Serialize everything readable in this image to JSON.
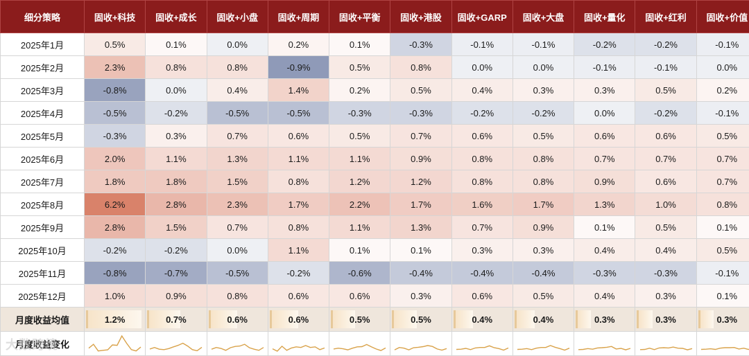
{
  "chart_data": {
    "type": "heatmap",
    "title": "",
    "row_header": "细分策略",
    "columns": [
      "固收+科技",
      "固收+成长",
      "固收+小盘",
      "固收+周期",
      "固收+平衡",
      "固收+港股",
      "固收+GARP",
      "固收+大盘",
      "固收+量化",
      "固收+红利",
      "固收+价值"
    ],
    "rows": [
      "2025年1月",
      "2025年2月",
      "2025年3月",
      "2025年4月",
      "2025年5月",
      "2025年6月",
      "2025年7月",
      "2025年8月",
      "2025年9月",
      "2025年10月",
      "2025年11月",
      "2025年12月"
    ],
    "values": [
      [
        0.5,
        0.1,
        0.0,
        0.2,
        0.1,
        -0.3,
        -0.1,
        -0.1,
        -0.2,
        -0.2,
        -0.1
      ],
      [
        2.3,
        0.8,
        0.8,
        -0.9,
        0.5,
        0.8,
        0.0,
        0.0,
        -0.1,
        -0.1,
        0.0
      ],
      [
        -0.8,
        0.0,
        0.4,
        1.4,
        0.2,
        0.5,
        0.4,
        0.3,
        0.3,
        0.5,
        0.2
      ],
      [
        -0.5,
        -0.2,
        -0.5,
        -0.5,
        -0.3,
        -0.3,
        -0.2,
        -0.2,
        0.0,
        -0.2,
        -0.1
      ],
      [
        -0.3,
        0.3,
        0.7,
        0.6,
        0.5,
        0.7,
        0.6,
        0.5,
        0.6,
        0.6,
        0.5
      ],
      [
        2.0,
        1.1,
        1.3,
        1.1,
        1.1,
        0.9,
        0.8,
        0.8,
        0.7,
        0.7,
        0.7
      ],
      [
        1.8,
        1.8,
        1.5,
        0.8,
        1.2,
        1.2,
        0.8,
        0.8,
        0.9,
        0.6,
        0.7
      ],
      [
        6.2,
        2.8,
        2.3,
        1.7,
        2.2,
        1.7,
        1.6,
        1.7,
        1.3,
        1.0,
        0.8
      ],
      [
        2.8,
        1.5,
        0.7,
        0.8,
        1.1,
        1.3,
        0.7,
        0.9,
        0.1,
        0.5,
        0.1
      ],
      [
        -0.2,
        -0.2,
        0.0,
        1.1,
        0.1,
        0.1,
        0.3,
        0.3,
        0.4,
        0.4,
        0.5
      ],
      [
        -0.8,
        -0.7,
        -0.5,
        -0.2,
        -0.6,
        -0.4,
        -0.4,
        -0.4,
        -0.3,
        -0.3,
        -0.1
      ],
      [
        1.0,
        0.9,
        0.8,
        0.6,
        0.6,
        0.3,
        0.6,
        0.5,
        0.4,
        0.3,
        0.1
      ]
    ],
    "averages_label": "月度收益均值",
    "averages": [
      1.2,
      0.7,
      0.6,
      0.6,
      0.5,
      0.5,
      0.4,
      0.4,
      0.3,
      0.3,
      0.3
    ],
    "sparkline_label": "月度收益变化",
    "value_suffix": "%"
  },
  "colors": {
    "header_bg": "#8b1c1c",
    "positive_max": "#d9826a",
    "negative_max": "#8f9ab8",
    "sparkline": "#d9a24a"
  },
  "watermark": "大数跨境"
}
